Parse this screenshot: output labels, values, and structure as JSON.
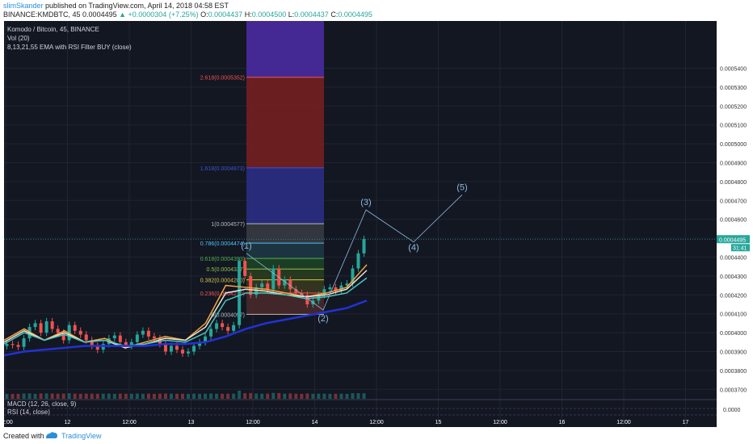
{
  "header": {
    "author": "slimSkander",
    "published": "published on TradingView.com, April 14, 2018 04:58 EST",
    "symbol": "BINANCE:KMDBTC, 45",
    "last": "0.0004495",
    "change": "▲ +0.0000304 (+7.25%)",
    "o_label": "O:",
    "o": "0.0004437",
    "h_label": "H:",
    "h": "0.0004500",
    "l_label": "L:",
    "l": "0.0004437",
    "c_label": "C:",
    "c": "0.0004495"
  },
  "legend": {
    "pair": "Komodo / Bitcoin, 45, BINANCE",
    "vol": "Vol (20)",
    "ema": "8,13,21,55 EMA with RSI Filter BUY (close)"
  },
  "indicators": {
    "macd": "MACD (12, 26, close, 9)",
    "rsi": "RSI (14, close)"
  },
  "footer": {
    "created": "Created with",
    "brand": "TradingView"
  },
  "colors": {
    "bg": "#131722",
    "up": "#26a69a",
    "down": "#ef5350",
    "ema55": "#2232d6",
    "wave": "#8fb9dd"
  },
  "chart_data": {
    "type": "candlestick",
    "y_axis": {
      "ylim": [
        0.000365,
        0.000565
      ],
      "ticks": [
        "0.0005400",
        "0.0005300",
        "0.0005200",
        "0.0005100",
        "0.0005000",
        "0.0004900",
        "0.0004800",
        "0.0004700",
        "0.0004600",
        "0.0004500",
        "0.0004400",
        "0.0004300",
        "0.0004200",
        "0.0004100",
        "0.0004000",
        "0.0003900",
        "0.0003800",
        "0.0003700"
      ]
    },
    "x_axis": {
      "ticks": [
        "12:00",
        "12",
        "12:00",
        "13",
        "12:00",
        "14",
        "12:00",
        "15",
        "12:00",
        "16",
        "12:00",
        "17"
      ]
    },
    "price_label": "0.0004495",
    "countdown": "31:41",
    "close": [
      0.000394,
      0.0003935,
      0.0003925,
      0.000397,
      0.000403,
      0.000405,
      0.0004,
      0.000406,
      0.000402,
      0.0004,
      0.000396,
      0.000404,
      0.000401,
      0.000399,
      0.000396,
      0.000393,
      0.000391,
      0.000394,
      0.000397,
      0.0003985,
      0.000395,
      0.000393,
      0.000395,
      0.000399,
      0.000401,
      0.000398,
      0.000397,
      0.000394,
      0.00039,
      0.000393,
      0.000391,
      0.000389,
      0.00039,
      0.000393,
      0.000395,
      0.000398,
      0.000402,
      0.000405,
      0.000403,
      0.000401,
      0.000404,
      0.000438,
      0.00043,
      0.00042,
      0.000424,
      0.000426,
      0.000423,
      0.000434,
      0.000425,
      0.000428,
      0.000423,
      0.000421,
      0.00042,
      0.000415,
      0.000417,
      0.00042,
      0.000423,
      0.000424,
      0.000422,
      0.000425,
      0.000426,
      0.000434,
      0.000442,
      0.0004495
    ],
    "ema": [
      {
        "name": "8",
        "color": "#f5a442",
        "values": [
          0.000396,
          0.000402,
          0.000396,
          0.000401,
          0.000395,
          0.000397,
          0.000392,
          0.000395,
          0.000398,
          0.000396,
          0.000405,
          0.000425,
          0.000424,
          0.000423,
          0.000421,
          0.000419,
          0.000421,
          0.000424,
          0.000436
        ]
      },
      {
        "name": "13",
        "color": "#e8e4d4",
        "values": [
          0.000395,
          0.000401,
          0.000396,
          0.0004,
          0.000395,
          0.000396,
          0.000392,
          0.000394,
          0.000397,
          0.000396,
          0.000403,
          0.000421,
          0.000423,
          0.000422,
          0.00042,
          0.000419,
          0.00042,
          0.000423,
          0.000433
        ]
      },
      {
        "name": "21",
        "color": "#4fc3c0",
        "values": [
          0.000394,
          0.0004,
          0.000396,
          0.000399,
          0.000395,
          0.000396,
          0.000393,
          0.000394,
          0.000396,
          0.000395,
          0.0004,
          0.000417,
          0.000421,
          0.000421,
          0.00042,
          0.000418,
          0.000419,
          0.000421,
          0.000429
        ]
      },
      {
        "name": "55",
        "color": "#2232d6",
        "values": [
          0.000388,
          0.00039,
          0.000391,
          0.000392,
          0.000393,
          0.000393,
          0.000393,
          0.000393,
          0.000394,
          0.000394,
          0.000395,
          0.000398,
          0.000402,
          0.000405,
          0.000407,
          0.000409,
          0.000411,
          0.000413,
          0.000417
        ]
      }
    ],
    "fib_levels": [
      {
        "label": "0(0.0004097)",
        "value": 0.0004097,
        "color": "#bbbbbb"
      },
      {
        "label": "0.236(0.0004210)",
        "value": 0.000421,
        "color": "#ef5350"
      },
      {
        "label": "0.382(0.0004280)",
        "value": 0.000428,
        "color": "#d4c94a"
      },
      {
        "label": "0.5(0.0004337)",
        "value": 0.0004337,
        "color": "#8bc34a"
      },
      {
        "label": "0.618(0.0004393)",
        "value": 0.0004393,
        "color": "#4caf50"
      },
      {
        "label": "0.786(0.0004474)",
        "value": 0.0004474,
        "color": "#4fc3f7"
      },
      {
        "label": "1(0.0004577)",
        "value": 0.0004577,
        "color": "#bbbbbb"
      },
      {
        "label": "1.618(0.0004873)",
        "value": 0.0004873,
        "color": "#3f51d8"
      },
      {
        "label": "2.618(0.0005352)",
        "value": 0.0005352,
        "color": "#ef5350"
      }
    ],
    "elliott_waves": [
      {
        "label": "(1)",
        "value": 0.000442
      },
      {
        "label": "(2)",
        "value": 0.000412
      },
      {
        "label": "(3)",
        "value": 0.000465
      },
      {
        "label": "(4)",
        "value": 0.000448
      },
      {
        "label": "(5)",
        "value": 0.000473
      }
    ]
  }
}
